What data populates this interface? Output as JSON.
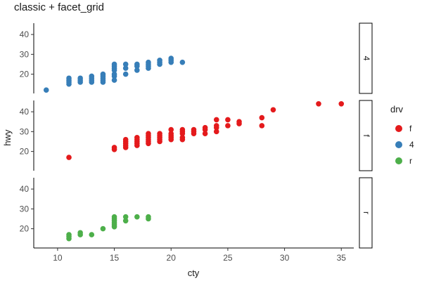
{
  "chart_data": {
    "type": "scatter",
    "title": "classic + facet_grid",
    "xlabel": "cty",
    "ylabel": "hwy",
    "xlim": [
      7.9,
      36.1
    ],
    "ylim": [
      10.3,
      45.7
    ],
    "x_ticks": [
      10,
      15,
      20,
      25,
      30,
      35
    ],
    "y_ticks": [
      20,
      30,
      40
    ],
    "grid": false,
    "legend": {
      "title": "drv",
      "position": "right",
      "entries": [
        {
          "label": "f",
          "color": "#E41A1C"
        },
        {
          "label": "4",
          "color": "#377EB8"
        },
        {
          "label": "r",
          "color": "#4DAF4A"
        }
      ]
    },
    "facets": [
      {
        "label": "4",
        "color": "#377EB8",
        "points": [
          [
            9,
            12
          ],
          [
            11,
            15
          ],
          [
            11,
            16
          ],
          [
            11,
            17
          ],
          [
            11,
            18
          ],
          [
            12,
            16
          ],
          [
            12,
            17
          ],
          [
            12,
            18
          ],
          [
            13,
            16
          ],
          [
            13,
            17
          ],
          [
            13,
            18
          ],
          [
            13,
            19
          ],
          [
            14,
            16
          ],
          [
            14,
            17
          ],
          [
            14,
            18
          ],
          [
            14,
            19
          ],
          [
            14,
            20
          ],
          [
            15,
            17
          ],
          [
            15,
            19
          ],
          [
            15,
            20
          ],
          [
            15,
            22
          ],
          [
            15,
            23
          ],
          [
            15,
            24
          ],
          [
            15,
            25
          ],
          [
            16,
            20
          ],
          [
            16,
            23
          ],
          [
            16,
            25
          ],
          [
            17,
            22
          ],
          [
            17,
            24
          ],
          [
            17,
            25
          ],
          [
            18,
            23
          ],
          [
            18,
            24
          ],
          [
            18,
            25
          ],
          [
            18,
            26
          ],
          [
            19,
            25
          ],
          [
            19,
            26
          ],
          [
            19,
            27
          ],
          [
            20,
            26
          ],
          [
            20,
            27
          ],
          [
            20,
            28
          ],
          [
            21,
            26
          ]
        ]
      },
      {
        "label": "f",
        "color": "#E41A1C",
        "points": [
          [
            11,
            17
          ],
          [
            15,
            21
          ],
          [
            15,
            22
          ],
          [
            16,
            22
          ],
          [
            16,
            23
          ],
          [
            16,
            24
          ],
          [
            16,
            25
          ],
          [
            16,
            26
          ],
          [
            17,
            23
          ],
          [
            17,
            24
          ],
          [
            17,
            25
          ],
          [
            17,
            26
          ],
          [
            17,
            27
          ],
          [
            18,
            24
          ],
          [
            18,
            25
          ],
          [
            18,
            26
          ],
          [
            18,
            27
          ],
          [
            18,
            28
          ],
          [
            18,
            29
          ],
          [
            19,
            25
          ],
          [
            19,
            26
          ],
          [
            19,
            27
          ],
          [
            19,
            28
          ],
          [
            19,
            29
          ],
          [
            20,
            26
          ],
          [
            20,
            27
          ],
          [
            20,
            28
          ],
          [
            20,
            29
          ],
          [
            20,
            31
          ],
          [
            21,
            26
          ],
          [
            21,
            27
          ],
          [
            21,
            29
          ],
          [
            21,
            30
          ],
          [
            21,
            31
          ],
          [
            22,
            29
          ],
          [
            22,
            30
          ],
          [
            22,
            31
          ],
          [
            23,
            29
          ],
          [
            23,
            31
          ],
          [
            23,
            32
          ],
          [
            24,
            30
          ],
          [
            24,
            32
          ],
          [
            24,
            33
          ],
          [
            24,
            36
          ],
          [
            25,
            33
          ],
          [
            25,
            36
          ],
          [
            26,
            34
          ],
          [
            26,
            35
          ],
          [
            28,
            33
          ],
          [
            28,
            37
          ],
          [
            29,
            41
          ],
          [
            33,
            44
          ],
          [
            35,
            44
          ]
        ]
      },
      {
        "label": "r",
        "color": "#4DAF4A",
        "points": [
          [
            11,
            15
          ],
          [
            11,
            16
          ],
          [
            11,
            17
          ],
          [
            12,
            17
          ],
          [
            12,
            18
          ],
          [
            13,
            17
          ],
          [
            14,
            20
          ],
          [
            15,
            21
          ],
          [
            15,
            22
          ],
          [
            15,
            23
          ],
          [
            15,
            24
          ],
          [
            15,
            25
          ],
          [
            15,
            26
          ],
          [
            16,
            24
          ],
          [
            16,
            26
          ],
          [
            17,
            26
          ],
          [
            18,
            25
          ],
          [
            18,
            26
          ]
        ]
      }
    ]
  }
}
